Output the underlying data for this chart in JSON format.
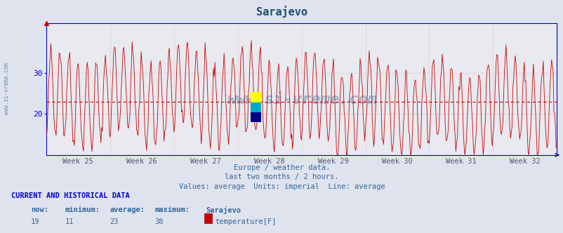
{
  "title": "Sarajevo",
  "title_color": "#1a5276",
  "title_fontsize": 11,
  "weeks": [
    "Week 25",
    "Week 26",
    "Week 27",
    "Week 28",
    "Week 29",
    "Week 30",
    "Week 31",
    "Week 32"
  ],
  "ylabel_vals": [
    20,
    30
  ],
  "ylim": [
    10,
    42
  ],
  "xlim_max": 672,
  "average_line_y": 23,
  "average_line_color": "#cc0000",
  "line_color": "#cc0000",
  "bg_color": "#dfe3ee",
  "plot_bg_color": "#e8eaf0",
  "axis_color": "#0000cc",
  "grid_color": "#ddaaaa",
  "watermark": "www.si-vreme.com",
  "watermark_color": "#336699",
  "watermark_alpha": 0.4,
  "footnote1": "Europe / weather data.",
  "footnote2": "last two months / 2 hours.",
  "footnote3": "Values: average  Units: imperial  Line: average",
  "footnote_color": "#336699",
  "bottom_label": "CURRENT AND HISTORICAL DATA",
  "bottom_label_color": "#0000cc",
  "row_values": [
    "19",
    "11",
    "23",
    "38"
  ],
  "row_series": "temperature[F]",
  "legend_color": "#cc0000",
  "left_label_color": "#336699",
  "left_label": "www.si-vreme.com",
  "num_points": 672,
  "logo_colors": [
    "#ffff00",
    "#00aacc",
    "#000088"
  ],
  "seed": 42
}
